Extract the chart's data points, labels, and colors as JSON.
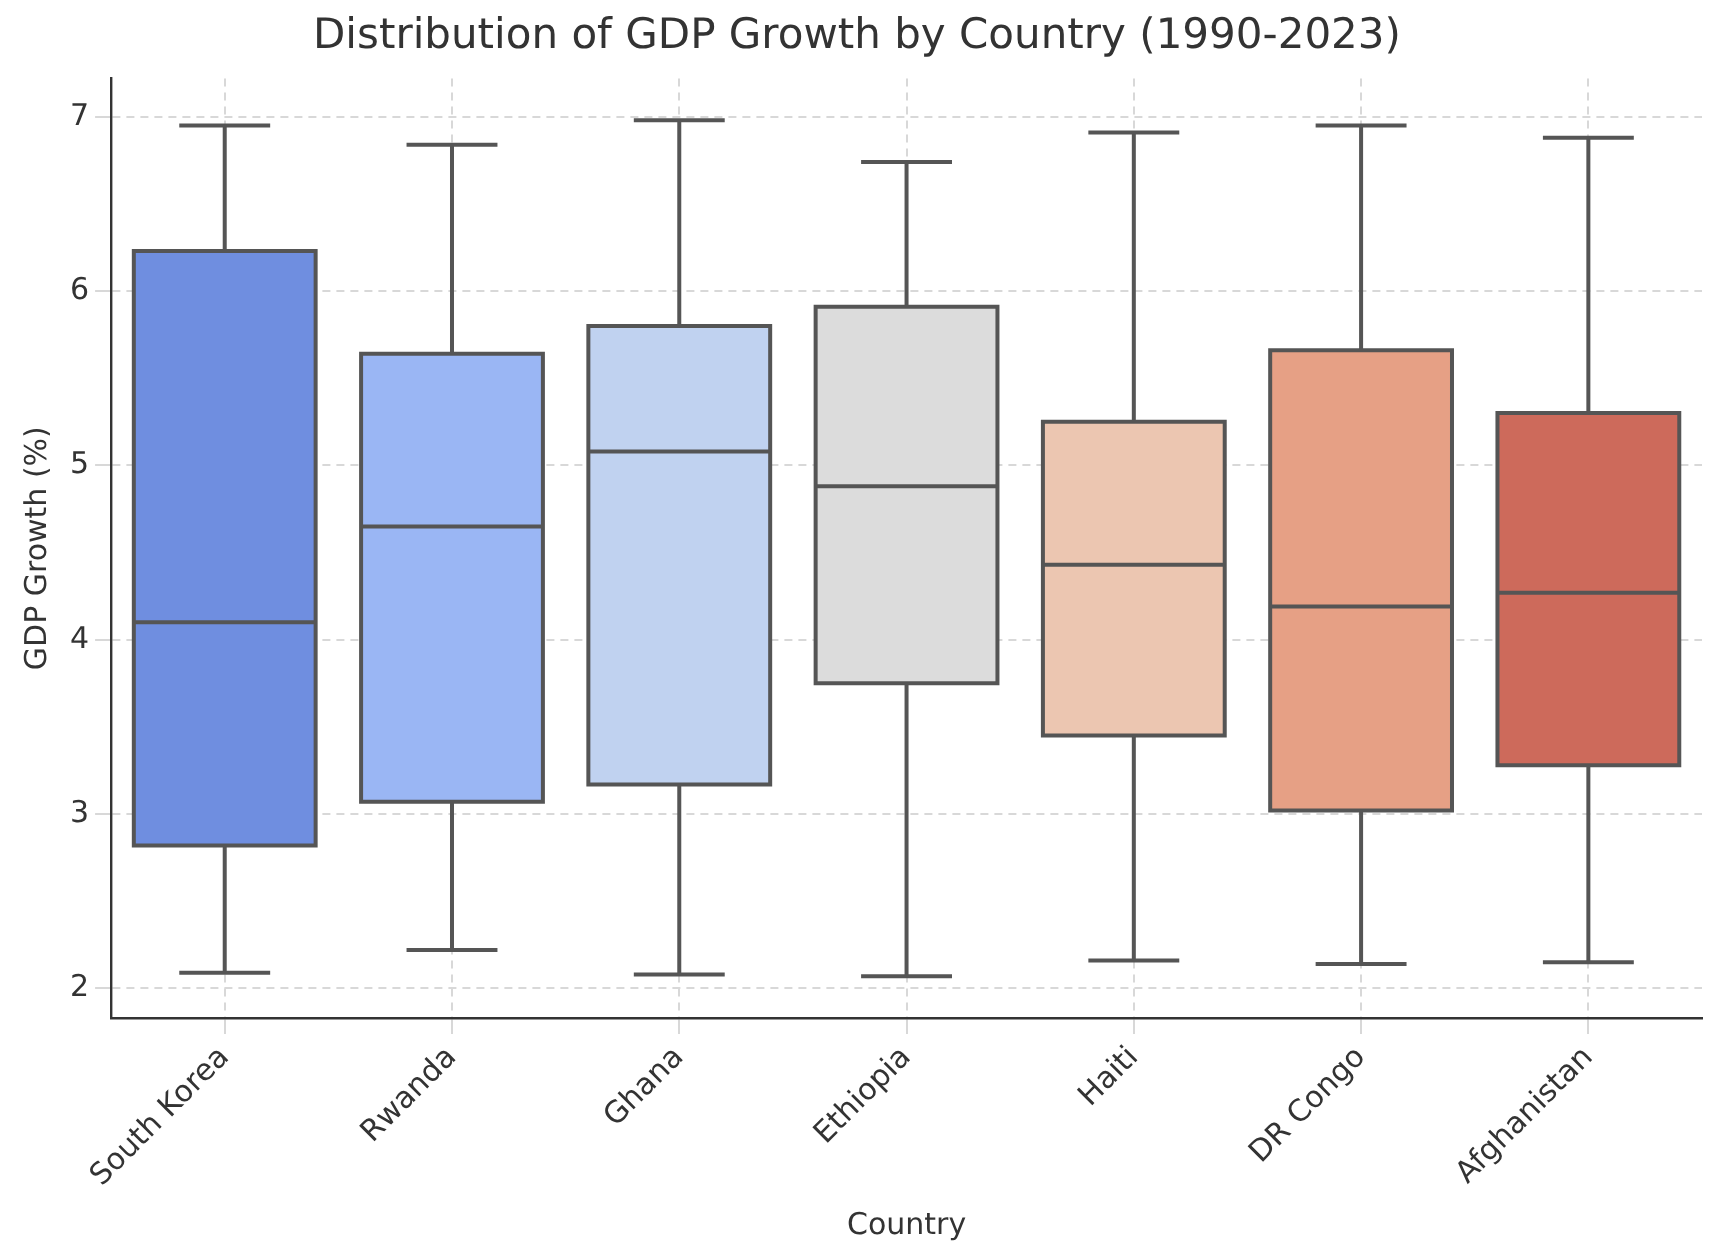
{
  "chart_data": {
    "type": "box",
    "title": "Distribution of GDP Growth by Country (1990-2023)",
    "xlabel": "Country",
    "ylabel": "GDP Growth (%)",
    "categories": [
      "South Korea",
      "Rwanda",
      "Ghana",
      "Ethiopia",
      "Haiti",
      "DR Congo",
      "Afghanistan"
    ],
    "colors": [
      "#6f8ee0",
      "#9ab6f4",
      "#c0d2f0",
      "#dcdcdc",
      "#ecc6b1",
      "#e6a085",
      "#cd6a5b"
    ],
    "boxes": [
      {
        "low": 2.09,
        "q1": 2.82,
        "median": 4.1,
        "q3": 6.23,
        "high": 6.95
      },
      {
        "low": 2.22,
        "q1": 3.07,
        "median": 4.65,
        "q3": 5.64,
        "high": 6.84
      },
      {
        "low": 2.08,
        "q1": 3.17,
        "median": 5.08,
        "q3": 5.8,
        "high": 6.98
      },
      {
        "low": 2.07,
        "q1": 3.75,
        "median": 4.88,
        "q3": 5.91,
        "high": 6.74
      },
      {
        "low": 2.16,
        "q1": 3.45,
        "median": 4.43,
        "q3": 5.25,
        "high": 6.91
      },
      {
        "low": 2.14,
        "q1": 3.02,
        "median": 4.19,
        "q3": 5.66,
        "high": 6.95
      },
      {
        "low": 2.15,
        "q1": 3.28,
        "median": 4.27,
        "q3": 5.3,
        "high": 6.88
      }
    ],
    "ylim": [
      1.83,
      7.22
    ],
    "yticks": [
      2,
      3,
      4,
      5,
      6,
      7
    ],
    "grid": true,
    "legend": false
  }
}
